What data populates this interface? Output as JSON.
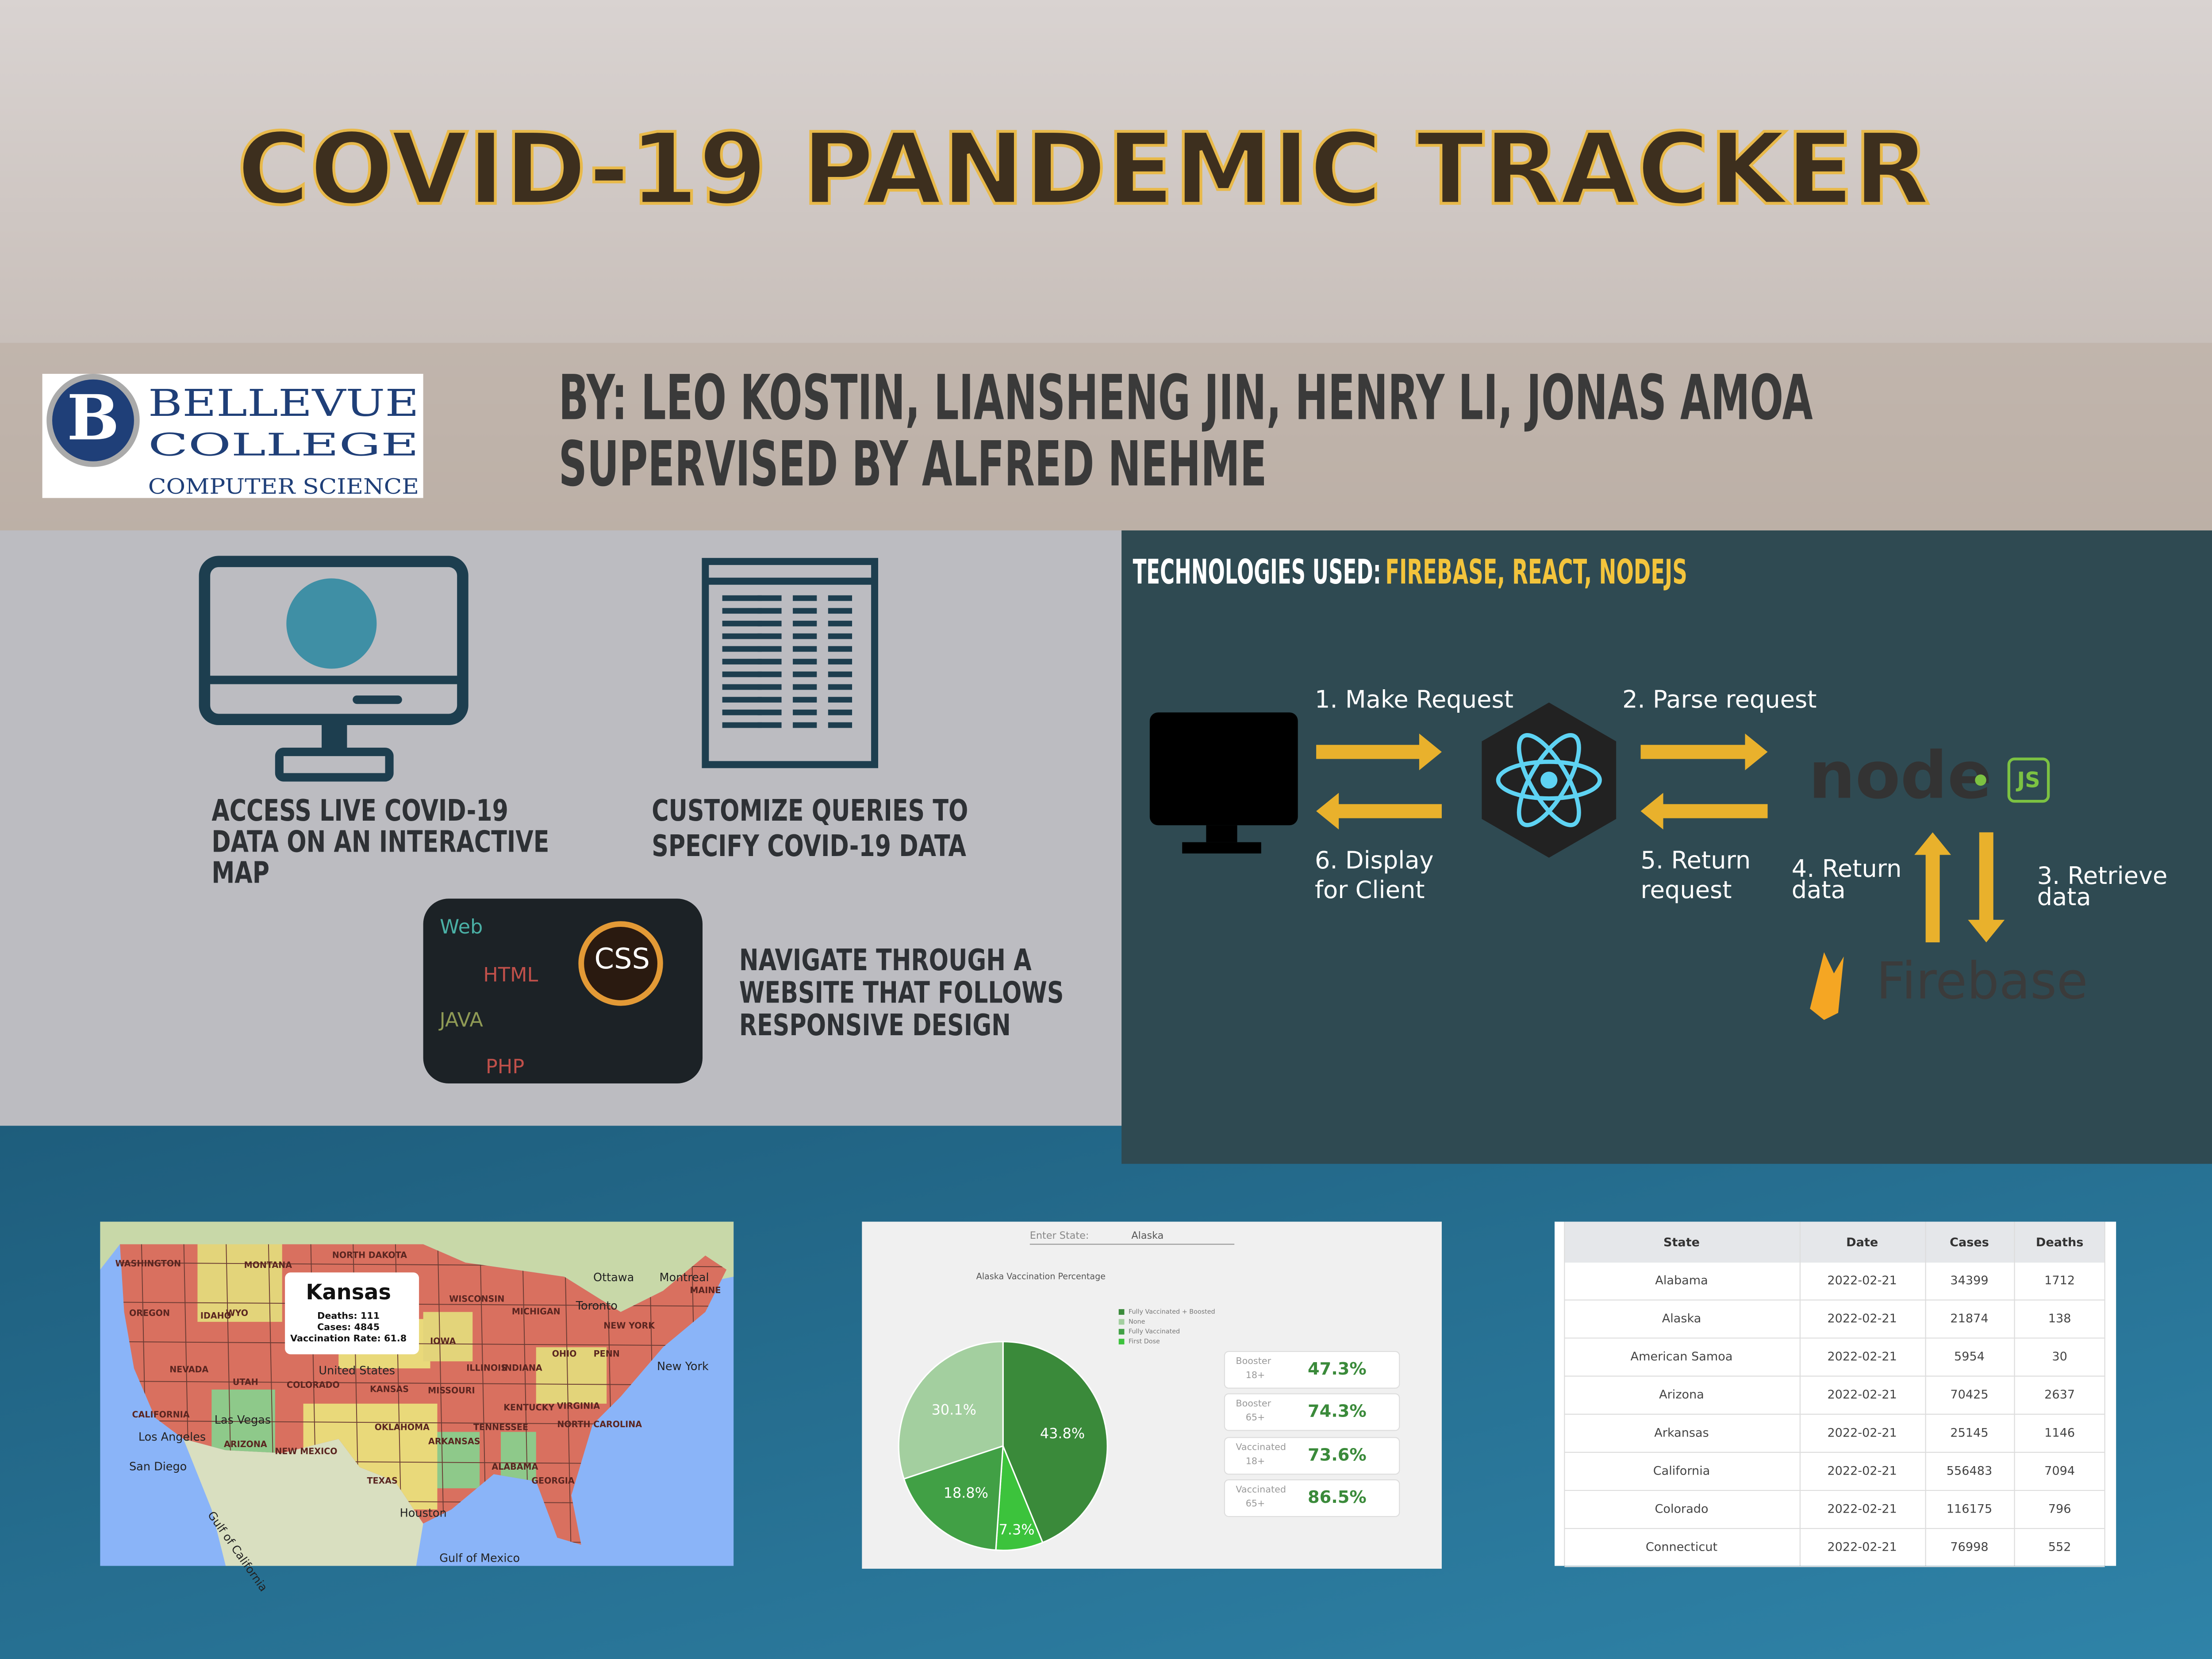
{
  "header": {
    "title": "COVID-19 PANDEMIC TRACKER",
    "authors": "BY: LEO KOSTIN, LIANSHENG JIN, HENRY LI, JONAS AMOA",
    "supervisor": "SUPERVISED BY ALFRED NEHME",
    "logo": {
      "letter": "B",
      "line1": "BELLEVUE",
      "line2": "COLLEGE",
      "line3": "COMPUTER SCIENCE"
    }
  },
  "features": [
    {
      "lines": [
        "ACCESS LIVE COVID-19",
        "DATA ON AN INTERACTIVE",
        "MAP"
      ]
    },
    {
      "lines": [
        "CUSTOMIZE QUERIES TO",
        "SPECIFY COVID-19 DATA"
      ]
    },
    {
      "lines": [
        "NAVIGATE THROUGH A",
        "WEBSITE THAT FOLLOWS",
        "RESPONSIVE DESIGN"
      ]
    }
  ],
  "web_image": {
    "labels": [
      "Web",
      "HTML",
      "CSS",
      "JAVA",
      "PHP"
    ]
  },
  "technologies": {
    "heading": "TECHNOLOGIES USED:",
    "list": "FIREBASE, REACT, NODEJS",
    "steps": [
      [
        "1. Make Request"
      ],
      [
        "2. Parse request"
      ],
      [
        "3. Retrieve",
        "data"
      ],
      [
        "4. Return",
        "data"
      ],
      [
        "5. Return",
        "request"
      ],
      [
        "6. Display",
        "for Client"
      ]
    ],
    "node_logo": "node",
    "js_logo": "JS",
    "firebase_logo": "Firebase"
  },
  "map": {
    "popup": {
      "title": "Kansas",
      "lines": [
        "Deaths: 111",
        "Cases: 4845",
        "Vaccination Rate: 61.8"
      ]
    },
    "labels": [
      "WASHINGTON",
      "MONTANA",
      "NORTH DAKOTA",
      "OREGON",
      "IDAHO",
      "WYO",
      "NEVADA",
      "UTAH",
      "COLORADO",
      "CALIFORNIA",
      "ARIZONA",
      "NEW MEXICO",
      "TEXAS",
      "KANSAS",
      "OKLAHOMA",
      "IOWA",
      "MISSOURI",
      "WISCONSIN",
      "MICHIGAN",
      "ILLINOIS",
      "INDIANA",
      "OHIO",
      "KENTUCKY",
      "TENNESSEE",
      "ARKANSAS",
      "ALABAMA",
      "GEORGIA",
      "NORTH CAROLINA",
      "VIRGINIA",
      "PENN",
      "NEW YORK",
      "MAINE",
      "Ottawa",
      "Montreal",
      "Toronto",
      "New York",
      "United States",
      "Las Vegas",
      "Los Angeles",
      "San Diego",
      "Houston",
      "Gulf of Mexico",
      "Gulf of California"
    ]
  },
  "vaccination": {
    "state_label": "Enter State:",
    "state": "Alaska",
    "chart_title": "Alaska Vaccination Percentage",
    "legend": [
      "Fully Vaccinated + Boosted",
      "None",
      "Fully Vaccinated",
      "First Dose"
    ],
    "legend_colors": [
      "#3a8a3a",
      "#a3cf9f",
      "#41a045",
      "#3cc33c"
    ],
    "pie": {
      "values": [
        43.8,
        7.3,
        18.8,
        30.1
      ],
      "value_labels": [
        "43.8%",
        "7.3%",
        "18.8%",
        "30.1%"
      ],
      "colors": [
        "#3a8a3a",
        "#3cc33c",
        "#41a045",
        "#a3cf9f"
      ]
    },
    "cards": [
      {
        "label": [
          "Booster",
          "18+"
        ],
        "value": "47.3%"
      },
      {
        "label": [
          "Booster",
          "65+"
        ],
        "value": "74.3%"
      },
      {
        "label": [
          "Vaccinated",
          "18+"
        ],
        "value": "73.6%"
      },
      {
        "label": [
          "Vaccinated",
          "65+"
        ],
        "value": "86.5%"
      }
    ]
  },
  "table": {
    "header": [
      "State",
      "Date",
      "Cases",
      "Deaths"
    ],
    "rows": [
      [
        "Alabama",
        "2022-02-21",
        "34399",
        "1712"
      ],
      [
        "Alaska",
        "2022-02-21",
        "21874",
        "138"
      ],
      [
        "American Samoa",
        "2022-02-21",
        "5954",
        "30"
      ],
      [
        "Arizona",
        "2022-02-21",
        "70425",
        "2637"
      ],
      [
        "Arkansas",
        "2022-02-21",
        "25145",
        "1146"
      ],
      [
        "California",
        "2022-02-21",
        "556483",
        "7094"
      ],
      [
        "Colorado",
        "2022-02-21",
        "116175",
        "796"
      ],
      [
        "Connecticut",
        "2022-02-21",
        "76998",
        "552"
      ]
    ]
  }
}
